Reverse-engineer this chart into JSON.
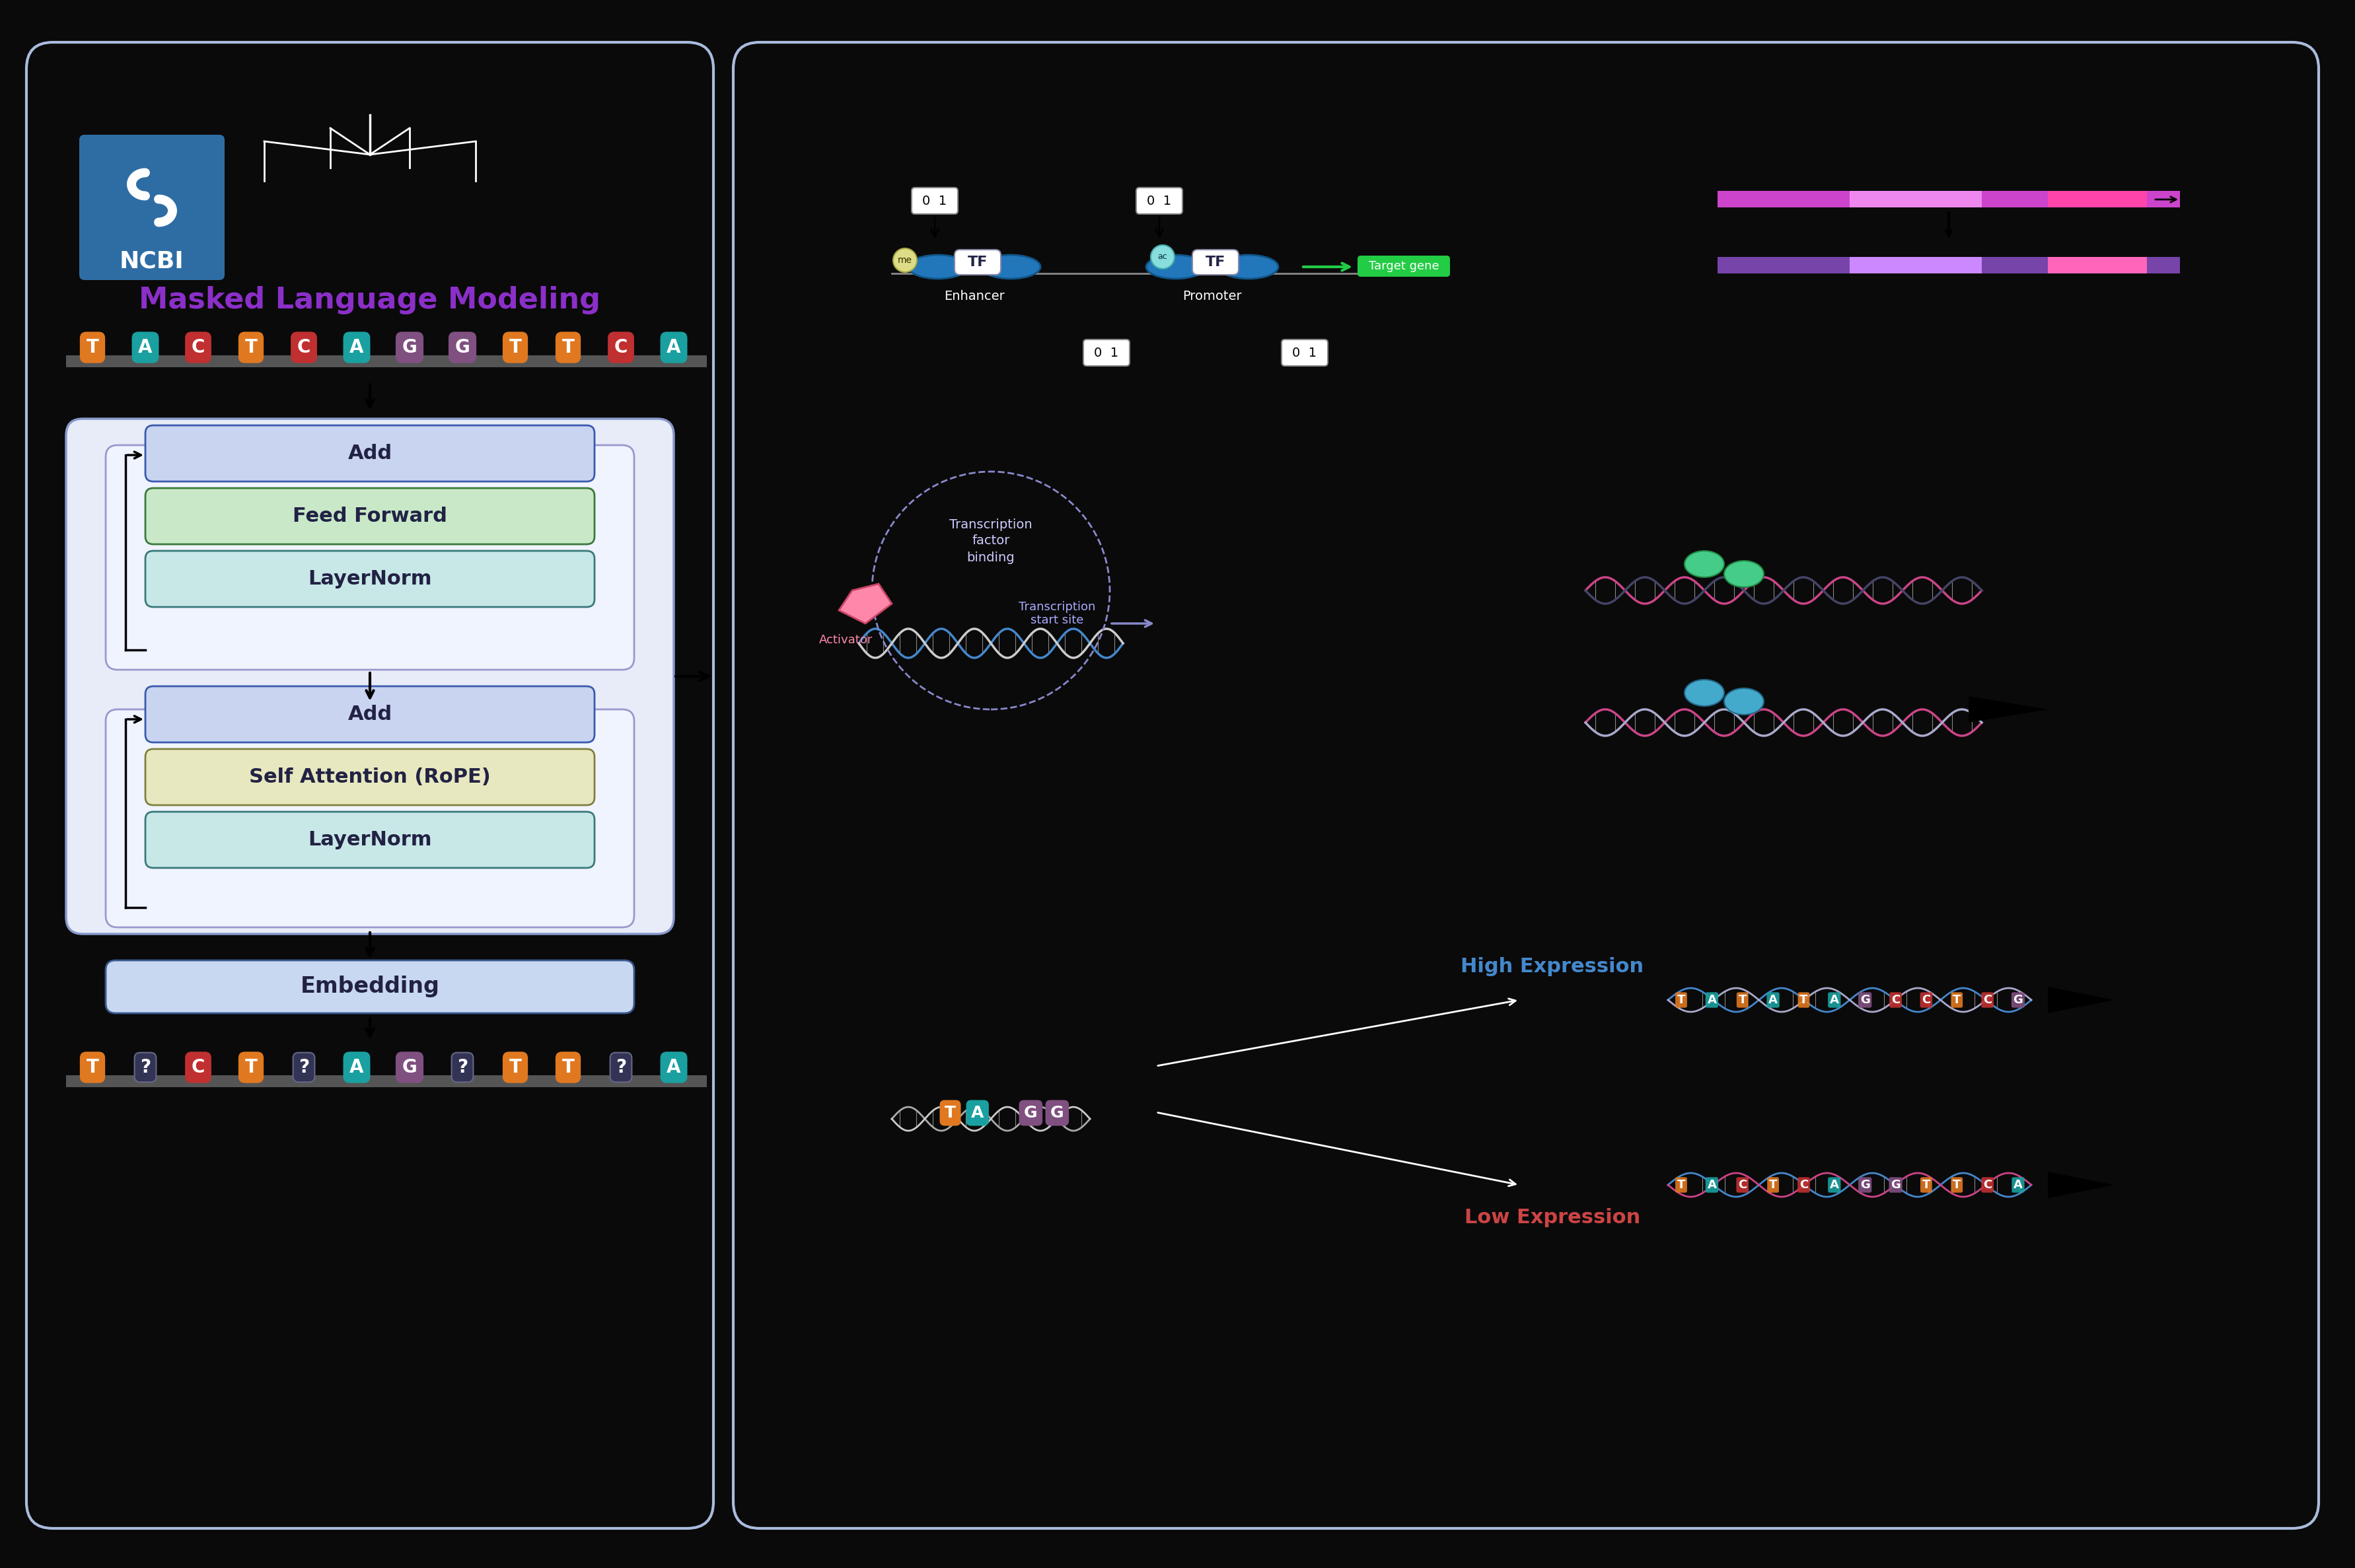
{
  "background_color": "#0a0a0a",
  "left_panel_border_color": "#aabbdd",
  "left_panel_bg": "#0a0a0a",
  "right_panel_bg": "#0a0a0a",
  "ncbi_box_color": "#2e6da4",
  "masked_lm_title": "Masked Language Modeling",
  "masked_lm_color": "#8B2FC9",
  "sequence_tokens": [
    "T",
    "A",
    "C",
    "T",
    "C",
    "A",
    "G",
    "G",
    "T",
    "T",
    "C",
    "A"
  ],
  "token_colors": [
    "#e07820",
    "#1aa0a0",
    "#c03030",
    "#e07820",
    "#c03030",
    "#1aa0a0",
    "#805080",
    "#805080",
    "#e07820",
    "#e07820",
    "#c03030",
    "#1aa0a0"
  ],
  "masked_tokens": [
    "T",
    "?",
    "C",
    "T",
    "?",
    "A",
    "G",
    "?",
    "T",
    "T",
    "?",
    "A"
  ],
  "masked_flags": [
    false,
    true,
    false,
    false,
    true,
    false,
    false,
    true,
    false,
    false,
    true,
    false
  ],
  "transformer_blocks": [
    {
      "label": "Add",
      "color": "#c8d4f0",
      "border": "#3a5ab0"
    },
    {
      "label": "Feed Forward",
      "color": "#c8e8c8",
      "border": "#3a7a3a"
    },
    {
      "label": "LayerNorm",
      "color": "#c8e8e8",
      "border": "#3a7a7a"
    }
  ],
  "transformer_blocks2": [
    {
      "label": "Add",
      "color": "#c8d4f0",
      "border": "#3a5ab0"
    },
    {
      "label": "Self Attention (RoPE)",
      "color": "#e8e8c0",
      "border": "#808040"
    },
    {
      "label": "LayerNorm",
      "color": "#c8e8e8",
      "border": "#3a7a7a"
    }
  ],
  "embedding_label": "Embedding",
  "embedding_color": "#c8d8f0",
  "embedding_border": "#3a5a90",
  "high_expression_color": "#4488cc",
  "low_expression_color": "#cc4444",
  "arrow_color": "#ffffff",
  "dna_blue": "#4488cc",
  "dna_red": "#cc4444",
  "dna_pink": "#dd88aa"
}
